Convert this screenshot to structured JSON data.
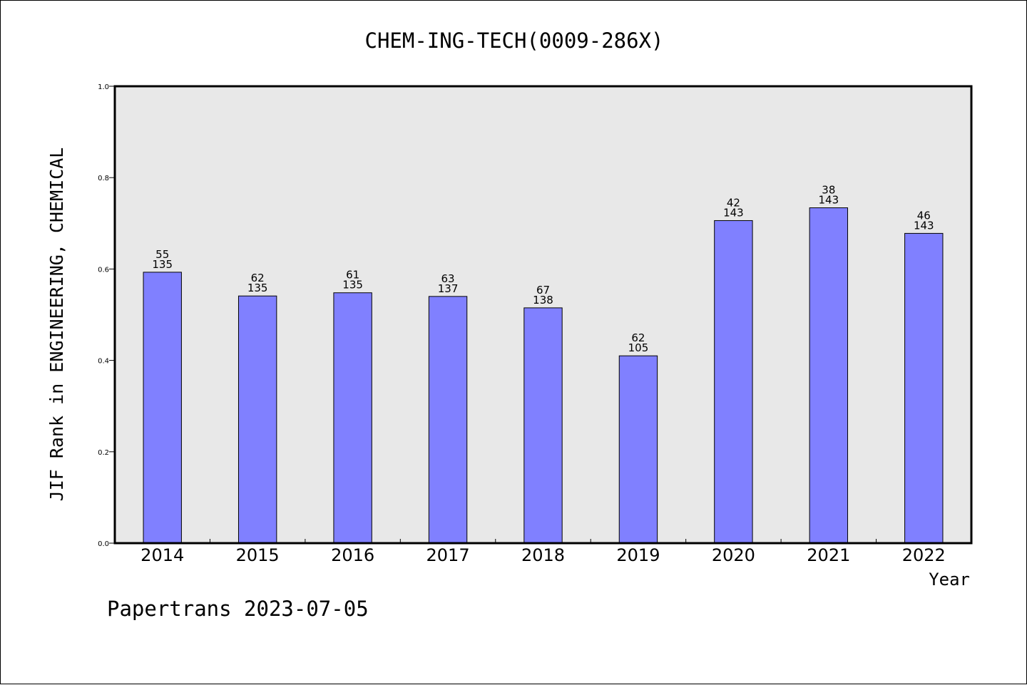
{
  "chart_data": {
    "type": "bar",
    "title": "CHEM-ING-TECH(0009-286X)",
    "xlabel": "Year",
    "ylabel": "JIF Rank in ENGINEERING, CHEMICAL",
    "ylim": [
      0,
      1.0
    ],
    "yticks": [
      "0.0",
      "0.2",
      "0.4",
      "0.6",
      "0.8",
      "1.0"
    ],
    "grid": false,
    "categories": [
      "2014",
      "2015",
      "2016",
      "2017",
      "2018",
      "2019",
      "2020",
      "2021",
      "2022"
    ],
    "values": [
      0.593,
      0.541,
      0.548,
      0.54,
      0.515,
      0.41,
      0.706,
      0.734,
      0.678
    ],
    "rank_labels": [
      "55",
      "62",
      "61",
      "63",
      "67",
      "62",
      "42",
      "38",
      "46"
    ],
    "total_labels": [
      "135",
      "135",
      "135",
      "137",
      "138",
      "105",
      "143",
      "143",
      "143"
    ],
    "colors": {
      "bar_fill": "#8080ff",
      "plot_background": "#e8e8e8"
    }
  },
  "footer": "Papertrans 2023-07-05"
}
